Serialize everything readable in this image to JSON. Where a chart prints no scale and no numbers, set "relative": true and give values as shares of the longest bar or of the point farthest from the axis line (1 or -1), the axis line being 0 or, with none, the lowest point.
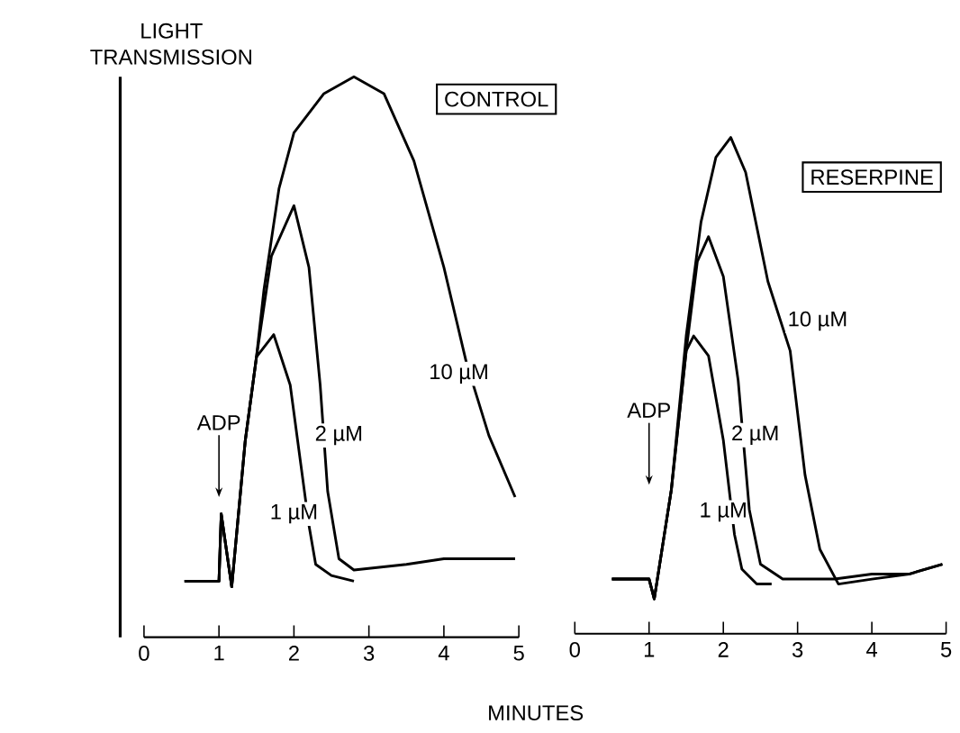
{
  "chart_data": [
    {
      "type": "line",
      "title": "CONTROL",
      "ylabel": "LIGHT TRANSMISSION",
      "xlabel": "MINUTES",
      "relative": true,
      "tick_labels": "x",
      "xlim": [
        0,
        5
      ],
      "xticks": [
        0,
        1,
        2,
        3,
        4,
        5
      ],
      "annotations": [
        "ADP"
      ],
      "series": [
        {
          "name": "1 µM",
          "color": "#000000",
          "x": [
            0.54,
            1.0,
            1.03,
            1.17,
            1.35,
            1.5,
            1.73,
            1.95,
            2.1,
            2.2,
            2.29,
            2.5,
            2.8
          ],
          "values": [
            0.1,
            0.1,
            0.22,
            0.09,
            0.35,
            0.5,
            0.54,
            0.45,
            0.3,
            0.2,
            0.13,
            0.11,
            0.1
          ]
        },
        {
          "name": "2 µM",
          "color": "#000000",
          "x": [
            0.54,
            1.0,
            1.03,
            1.17,
            1.35,
            1.5,
            1.7,
            2.0,
            2.2,
            2.35,
            2.45,
            2.6,
            2.8,
            3.5,
            4.0,
            4.5,
            4.95
          ],
          "values": [
            0.1,
            0.1,
            0.22,
            0.09,
            0.35,
            0.5,
            0.68,
            0.77,
            0.66,
            0.45,
            0.26,
            0.14,
            0.12,
            0.13,
            0.14,
            0.14,
            0.14
          ]
        },
        {
          "name": "10 µM",
          "color": "#000000",
          "x": [
            0.54,
            1.0,
            1.03,
            1.17,
            1.35,
            1.5,
            1.6,
            1.8,
            2.0,
            2.4,
            2.8,
            3.2,
            3.6,
            4.0,
            4.3,
            4.6,
            4.95
          ],
          "values": [
            0.1,
            0.1,
            0.22,
            0.09,
            0.35,
            0.5,
            0.62,
            0.8,
            0.9,
            0.97,
            1.0,
            0.97,
            0.85,
            0.66,
            0.49,
            0.36,
            0.25
          ]
        }
      ]
    },
    {
      "type": "line",
      "title": "RESERPINE",
      "relative": true,
      "tick_labels": "x",
      "xlim": [
        0,
        5
      ],
      "xticks": [
        0,
        1,
        2,
        3,
        4,
        5
      ],
      "annotations": [
        "ADP"
      ],
      "series": [
        {
          "name": "1 µM",
          "color": "#000000",
          "x": [
            0.5,
            1.0,
            1.07,
            1.3,
            1.5,
            1.6,
            1.8,
            2.0,
            2.15,
            2.25,
            2.45,
            2.65
          ],
          "values": [
            0.11,
            0.11,
            0.07,
            0.29,
            0.57,
            0.6,
            0.56,
            0.39,
            0.2,
            0.13,
            0.1,
            0.1
          ]
        },
        {
          "name": "2 µM",
          "color": "#000000",
          "x": [
            0.5,
            1.0,
            1.07,
            1.3,
            1.5,
            1.65,
            1.8,
            2.0,
            2.2,
            2.35,
            2.5,
            2.8,
            3.5,
            4.0,
            4.5,
            4.95
          ],
          "values": [
            0.11,
            0.11,
            0.07,
            0.29,
            0.57,
            0.75,
            0.8,
            0.72,
            0.51,
            0.25,
            0.14,
            0.11,
            0.11,
            0.12,
            0.12,
            0.14
          ]
        },
        {
          "name": "10 µM",
          "color": "#000000",
          "x": [
            0.5,
            1.0,
            1.07,
            1.3,
            1.5,
            1.7,
            1.9,
            2.1,
            2.3,
            2.6,
            2.9,
            3.1,
            3.3,
            3.55,
            4.0,
            4.5,
            4.95
          ],
          "values": [
            0.11,
            0.11,
            0.07,
            0.29,
            0.6,
            0.83,
            0.96,
            1.0,
            0.93,
            0.71,
            0.57,
            0.32,
            0.17,
            0.1,
            0.11,
            0.12,
            0.14
          ]
        }
      ]
    }
  ]
}
